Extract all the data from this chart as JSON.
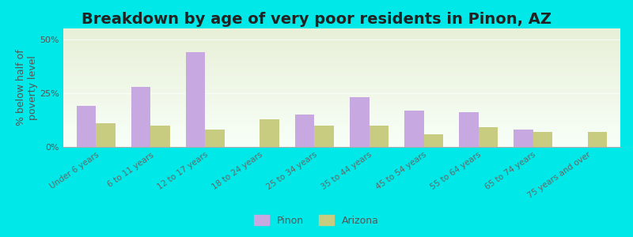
{
  "title": "Breakdown by age of very poor residents in Pinon, AZ",
  "ylabel": "% below half of\npoverty level",
  "categories": [
    "Under 6 years",
    "6 to 11 years",
    "12 to 17 years",
    "18 to 24 years",
    "25 to 34 years",
    "35 to 44 years",
    "45 to 54 years",
    "55 to 64 years",
    "65 to 74 years",
    "75 years and over"
  ],
  "pinon_values": [
    19,
    28,
    44,
    0,
    15,
    23,
    17,
    16,
    8,
    0
  ],
  "arizona_values": [
    11,
    10,
    8,
    13,
    10,
    10,
    6,
    9,
    7,
    7
  ],
  "pinon_color": "#c8a8e0",
  "arizona_color": "#c8cc80",
  "bg_color_top": "#e8f0d8",
  "bg_color_bottom": "#f8fff8",
  "outer_bg": "#00e8e8",
  "ylim": [
    0,
    55
  ],
  "yticks": [
    0,
    25,
    50
  ],
  "ytick_labels": [
    "0%",
    "25%",
    "50%"
  ],
  "title_fontsize": 14,
  "ylabel_fontsize": 9,
  "legend_pinon": "Pinon",
  "legend_arizona": "Arizona",
  "bar_width": 0.35
}
